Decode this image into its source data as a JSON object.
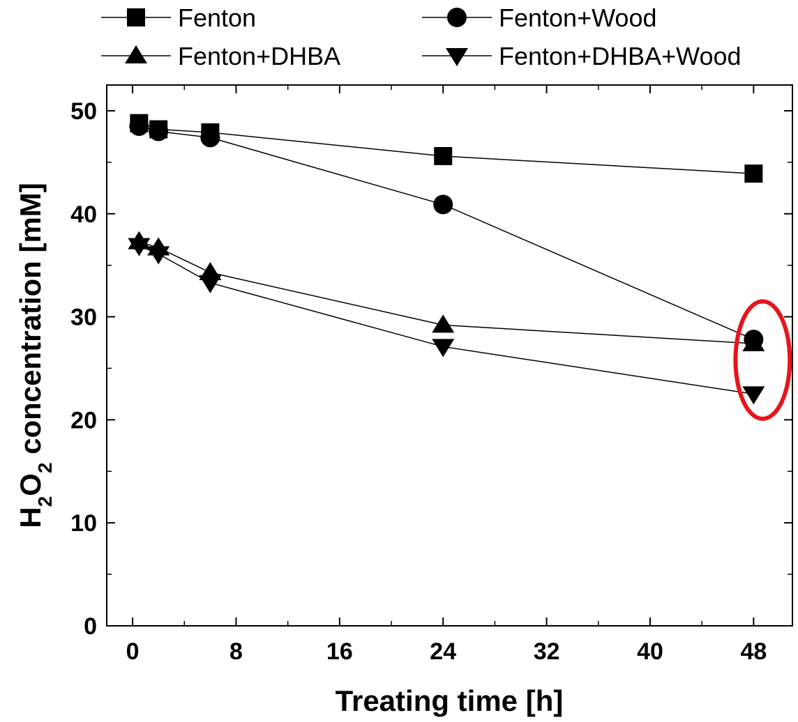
{
  "chart_data": {
    "type": "line",
    "xlabel": "Treating time [h]",
    "ylabel": {
      "parts": [
        {
          "text": "H",
          "sub": false
        },
        {
          "text": "2",
          "sub": true
        },
        {
          "text": "O",
          "sub": false
        },
        {
          "text": "2",
          "sub": true
        },
        {
          "text": " concentration [mM]",
          "sub": false
        }
      ]
    },
    "xlim": [
      -2,
      51
    ],
    "ylim": [
      0,
      52.5
    ],
    "xticks": [
      0,
      8,
      16,
      24,
      32,
      40,
      48
    ],
    "yticks": [
      0,
      10,
      20,
      30,
      40,
      50
    ],
    "legend_position": "top",
    "grid": false,
    "series": [
      {
        "name": "Fenton",
        "marker": "square",
        "x": [
          0.5,
          2,
          6,
          24,
          48
        ],
        "y": [
          48.8,
          48.2,
          47.9,
          45.6,
          43.9
        ]
      },
      {
        "name": "Fenton+Wood",
        "marker": "circle",
        "x": [
          0.5,
          2,
          6,
          24,
          48
        ],
        "y": [
          48.5,
          48.0,
          47.4,
          40.9,
          27.8
        ]
      },
      {
        "name": "Fenton+DHBA",
        "marker": "triangle-up",
        "x": [
          0.5,
          2,
          6,
          24,
          48
        ],
        "y": [
          37.3,
          36.7,
          34.3,
          29.2,
          27.4
        ]
      },
      {
        "name": "Fenton+DHBA+Wood",
        "marker": "triangle-down",
        "x": [
          0.5,
          2,
          6,
          24,
          48
        ],
        "y": [
          36.9,
          36.1,
          33.3,
          27.1,
          22.5
        ]
      }
    ],
    "annotations": [
      {
        "type": "ellipse",
        "color": "#e8141b",
        "center_x": 48.7,
        "center_y": 25.8,
        "rx_data": 2.1,
        "ry_data": 5.7
      }
    ],
    "colors": {
      "series": "#000000",
      "highlight": "#e8141b"
    }
  }
}
